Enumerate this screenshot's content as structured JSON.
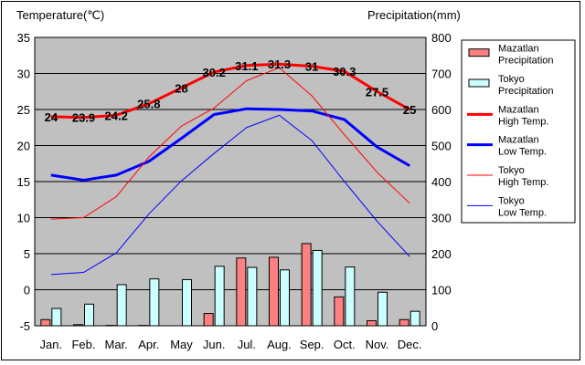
{
  "chart_data": {
    "type": "bar",
    "left_axis_title": "Temperature(℃)",
    "right_axis_title": "Precipitation(mm)",
    "categories": [
      "Jan.",
      "Feb.",
      "Mar.",
      "Apr.",
      "May",
      "Jun.",
      "Jul.",
      "Aug.",
      "Sep.",
      "Oct.",
      "Nov.",
      "Dec."
    ],
    "ylim_left": [
      -5,
      35
    ],
    "ylim_right": [
      0,
      800
    ],
    "left_ticks": [
      -5,
      0,
      5,
      10,
      15,
      20,
      25,
      30,
      35
    ],
    "right_ticks": [
      0,
      100,
      200,
      300,
      400,
      500,
      600,
      700,
      800
    ],
    "grid": true,
    "legend_position": "right",
    "precipitation_series": [
      {
        "name": "Mazatlan Precipitation",
        "color": "#ff8080",
        "values": [
          17,
          3,
          1,
          1,
          0,
          34,
          188,
          190,
          228,
          80,
          14,
          17
        ]
      },
      {
        "name": "Tokyo Precipitation",
        "color": "#ccffff",
        "values": [
          48,
          60,
          114,
          130,
          128,
          165,
          162,
          155,
          209,
          163,
          93,
          40
        ]
      }
    ],
    "temperature_series": [
      {
        "name": "Mazatlan High Temp.",
        "color": "#ff0000",
        "width": "thick",
        "values": [
          24,
          23.9,
          24.2,
          25.8,
          28,
          30.2,
          31.1,
          31.3,
          31,
          30.3,
          27.5,
          25
        ],
        "labels": [
          "24",
          "23.9",
          "24.2",
          "25.8",
          "28",
          "30.2",
          "31.1",
          "31.3",
          "31",
          "30.3",
          "27.5",
          "25"
        ]
      },
      {
        "name": "Mazatlan Low Temp.",
        "color": "#0000ff",
        "width": "thick",
        "values": [
          15.9,
          15.2,
          15.9,
          17.8,
          21,
          24.3,
          25.1,
          25.0,
          24.8,
          23.6,
          19.8,
          17.2
        ]
      },
      {
        "name": "Tokyo High Temp.",
        "color": "#ff0000",
        "width": "thin",
        "values": [
          9.8,
          10,
          12.9,
          18.4,
          22.7,
          25.2,
          29,
          30.8,
          26.9,
          21.5,
          16.3,
          12
        ]
      },
      {
        "name": "Tokyo Low Temp.",
        "color": "#0000ff",
        "width": "thin",
        "values": [
          2.1,
          2.4,
          5.1,
          10.5,
          15.1,
          18.9,
          22.5,
          24.2,
          20.7,
          15,
          9.5,
          4.6
        ]
      }
    ],
    "legend": [
      {
        "kind": "bar",
        "color": "#ff8080",
        "lines": [
          "Mazatlan",
          "Precipitation"
        ]
      },
      {
        "kind": "bar",
        "color": "#ccffff",
        "lines": [
          "Tokyo",
          "Precipitation"
        ]
      },
      {
        "kind": "line",
        "color": "#ff0000",
        "width": "thick",
        "lines": [
          "Mazatlan",
          "High Temp."
        ]
      },
      {
        "kind": "line",
        "color": "#0000ff",
        "width": "thick",
        "lines": [
          "Mazatlan",
          "Low Temp."
        ]
      },
      {
        "kind": "line",
        "color": "#ff0000",
        "width": "thin",
        "lines": [
          "Tokyo",
          "High Temp."
        ]
      },
      {
        "kind": "line",
        "color": "#0000ff",
        "width": "thin",
        "lines": [
          "Tokyo",
          "Low Temp."
        ]
      }
    ]
  }
}
